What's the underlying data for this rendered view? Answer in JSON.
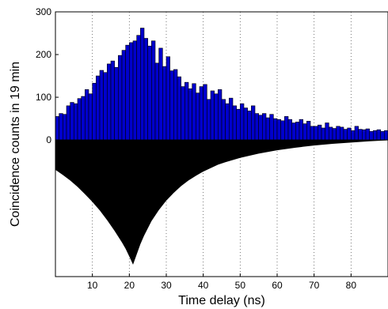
{
  "chart_data": {
    "type": "bar",
    "xlabel": "Time delay (ns)",
    "ylabel": "Coincidence counts in 19 min",
    "xlim": [
      0,
      90
    ],
    "ylim_display": [
      -320,
      300
    ],
    "x_ticks": [
      10,
      20,
      30,
      40,
      50,
      60,
      70,
      80
    ],
    "y_ticks": [
      0,
      100,
      200,
      300
    ],
    "grid": "vertical dotted",
    "colors": {
      "bars": "#0000cc",
      "model": "#000000"
    },
    "series": [
      {
        "type": "bar",
        "bin_width": 1,
        "x_start": 0,
        "values": [
          55,
          62,
          60,
          80,
          88,
          85,
          97,
          102,
          118,
          108,
          133,
          150,
          163,
          158,
          178,
          185,
          170,
          198,
          210,
          222,
          228,
          232,
          245,
          262,
          238,
          220,
          232,
          180,
          215,
          172,
          195,
          162,
          165,
          148,
          125,
          135,
          120,
          132,
          110,
          125,
          130,
          95,
          115,
          108,
          118,
          95,
          85,
          98,
          80,
          72,
          85,
          75,
          68,
          80,
          62,
          58,
          62,
          52,
          60,
          50,
          48,
          45,
          55,
          48,
          40,
          42,
          48,
          38,
          44,
          32,
          32,
          35,
          28,
          40,
          30,
          27,
          32,
          30,
          25,
          28,
          22,
          32,
          25,
          24,
          26,
          20,
          22,
          24,
          20,
          22
        ]
      },
      {
        "type": "area",
        "mirrored_below_zero": true,
        "x": [
          0,
          2,
          4,
          6,
          8,
          10,
          12,
          14,
          16,
          18,
          19,
          20,
          21,
          22,
          23,
          24,
          26,
          28,
          30,
          32,
          34,
          36,
          38,
          40,
          42,
          44,
          46,
          48,
          50,
          55,
          60,
          65,
          70,
          75,
          80,
          85,
          89.5
        ],
        "values": [
          70,
          82,
          95,
          110,
          127,
          145,
          165,
          188,
          213,
          240,
          255,
          273,
          292,
          268,
          244,
          224,
          190,
          164,
          142,
          124,
          108,
          95,
          84,
          74,
          66,
          58,
          52,
          47,
          42,
          32,
          24,
          18,
          13,
          9,
          6,
          3,
          1
        ]
      }
    ]
  }
}
